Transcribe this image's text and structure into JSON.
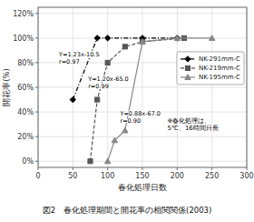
{
  "chart_data": {
    "type": "line",
    "title": "図2　春化処理期間と開花率の相関関係(2003)",
    "x_label": "春化処理日数",
    "y_label": "開花率(%)",
    "xlim": [
      0,
      300
    ],
    "ylim": [
      -5,
      125
    ],
    "xticks": [
      0,
      50,
      100,
      150,
      200,
      250,
      300
    ],
    "yticks": [
      {
        "value": 0,
        "label": "0%"
      },
      {
        "value": 20,
        "label": "20%"
      },
      {
        "value": 40,
        "label": "40%"
      },
      {
        "value": 60,
        "label": "60%"
      },
      {
        "value": 80,
        "label": "80%"
      },
      {
        "value": 100,
        "label": "100%"
      },
      {
        "value": 120,
        "label": "120%"
      }
    ],
    "grid": true,
    "legend": "right",
    "series": [
      {
        "name": "NK-291mm-C",
        "color": "#000000",
        "marker": "diamond",
        "line_style": "dashdot",
        "x": [
          50,
          85,
          100,
          150,
          200
        ],
        "values": [
          50,
          100,
          100,
          100,
          100
        ]
      },
      {
        "name": "NK-219mm-C",
        "color": "#555555",
        "marker": "square",
        "line_style": "dashed",
        "x": [
          75,
          85,
          100,
          125,
          150,
          210
        ],
        "values": [
          0,
          50,
          80,
          93,
          97,
          100
        ]
      },
      {
        "name": "NK-195mm-C",
        "color": "#888888",
        "marker": "triangle",
        "line_style": "solid",
        "x": [
          100,
          110,
          125,
          150,
          200,
          250
        ],
        "values": [
          0,
          17,
          25,
          97,
          100,
          100
        ]
      }
    ],
    "annotations": [
      {
        "text": "Y=1.23x-10.5\nr=0.97",
        "x": 30,
        "y": 90
      },
      {
        "text": "Y=1.20x-65.0\nr=0.99",
        "x": 72,
        "y": 70
      },
      {
        "text": "Y=0.88x-67.0\nr=0.90",
        "x": 118,
        "y": 42
      },
      {
        "text": "※春化処理は、\n5℃、16時間日長"
      }
    ]
  }
}
